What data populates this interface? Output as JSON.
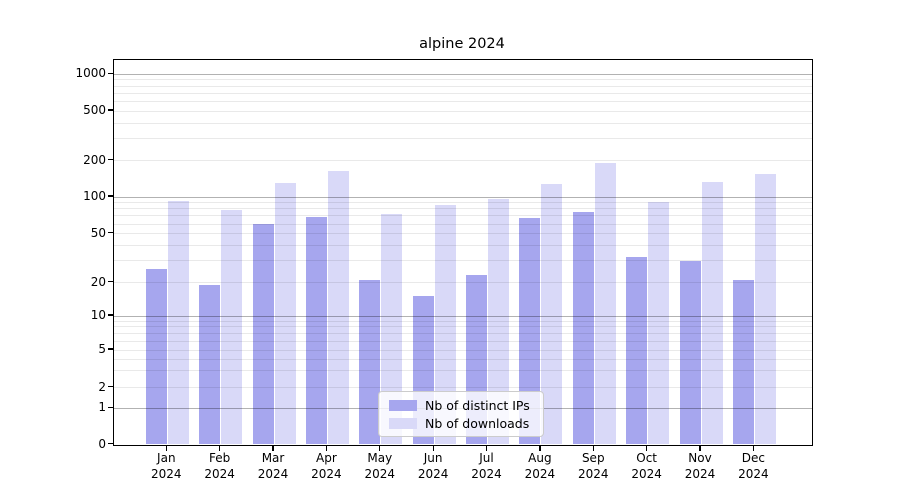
{
  "chart_data": {
    "type": "bar",
    "title": "alpine 2024",
    "months": [
      "Jan",
      "Feb",
      "Mar",
      "Apr",
      "May",
      "Jun",
      "Jul",
      "Aug",
      "Sep",
      "Oct",
      "Nov",
      "Dec"
    ],
    "year_label": "2024",
    "categories": [
      "Jan 2024",
      "Feb 2024",
      "Mar 2024",
      "Apr 2024",
      "May 2024",
      "Jun 2024",
      "Jul 2024",
      "Aug 2024",
      "Sep 2024",
      "Oct 2024",
      "Nov 2024",
      "Dec 2024"
    ],
    "series": [
      {
        "name": "Nb of distinct IPs",
        "color": "#a6a6ee",
        "values": [
          26,
          19,
          60,
          68,
          21,
          15,
          23,
          67,
          75,
          32,
          30,
          21
        ]
      },
      {
        "name": "Nb of downloads",
        "color": "#d9d9f8",
        "values": [
          92,
          78,
          131,
          164,
          72,
          86,
          96,
          127,
          190,
          91,
          133,
          156
        ]
      }
    ],
    "y_axis": {
      "scale": "symlog",
      "ticks": [
        0,
        1,
        2,
        5,
        10,
        20,
        50,
        100,
        200,
        500,
        1000
      ],
      "major_gridlines": [
        1,
        10,
        100,
        1000
      ],
      "minor_multiples": [
        2,
        3,
        4,
        5,
        6,
        7,
        8,
        9
      ],
      "ylim": [
        0,
        1300
      ]
    },
    "grid": "on",
    "legend_position": "lower center"
  },
  "colors": {
    "spine": "#000000",
    "major_grid": "#b5b5b5",
    "minor_grid": "#e9e9e9",
    "background": "#ffffff"
  }
}
